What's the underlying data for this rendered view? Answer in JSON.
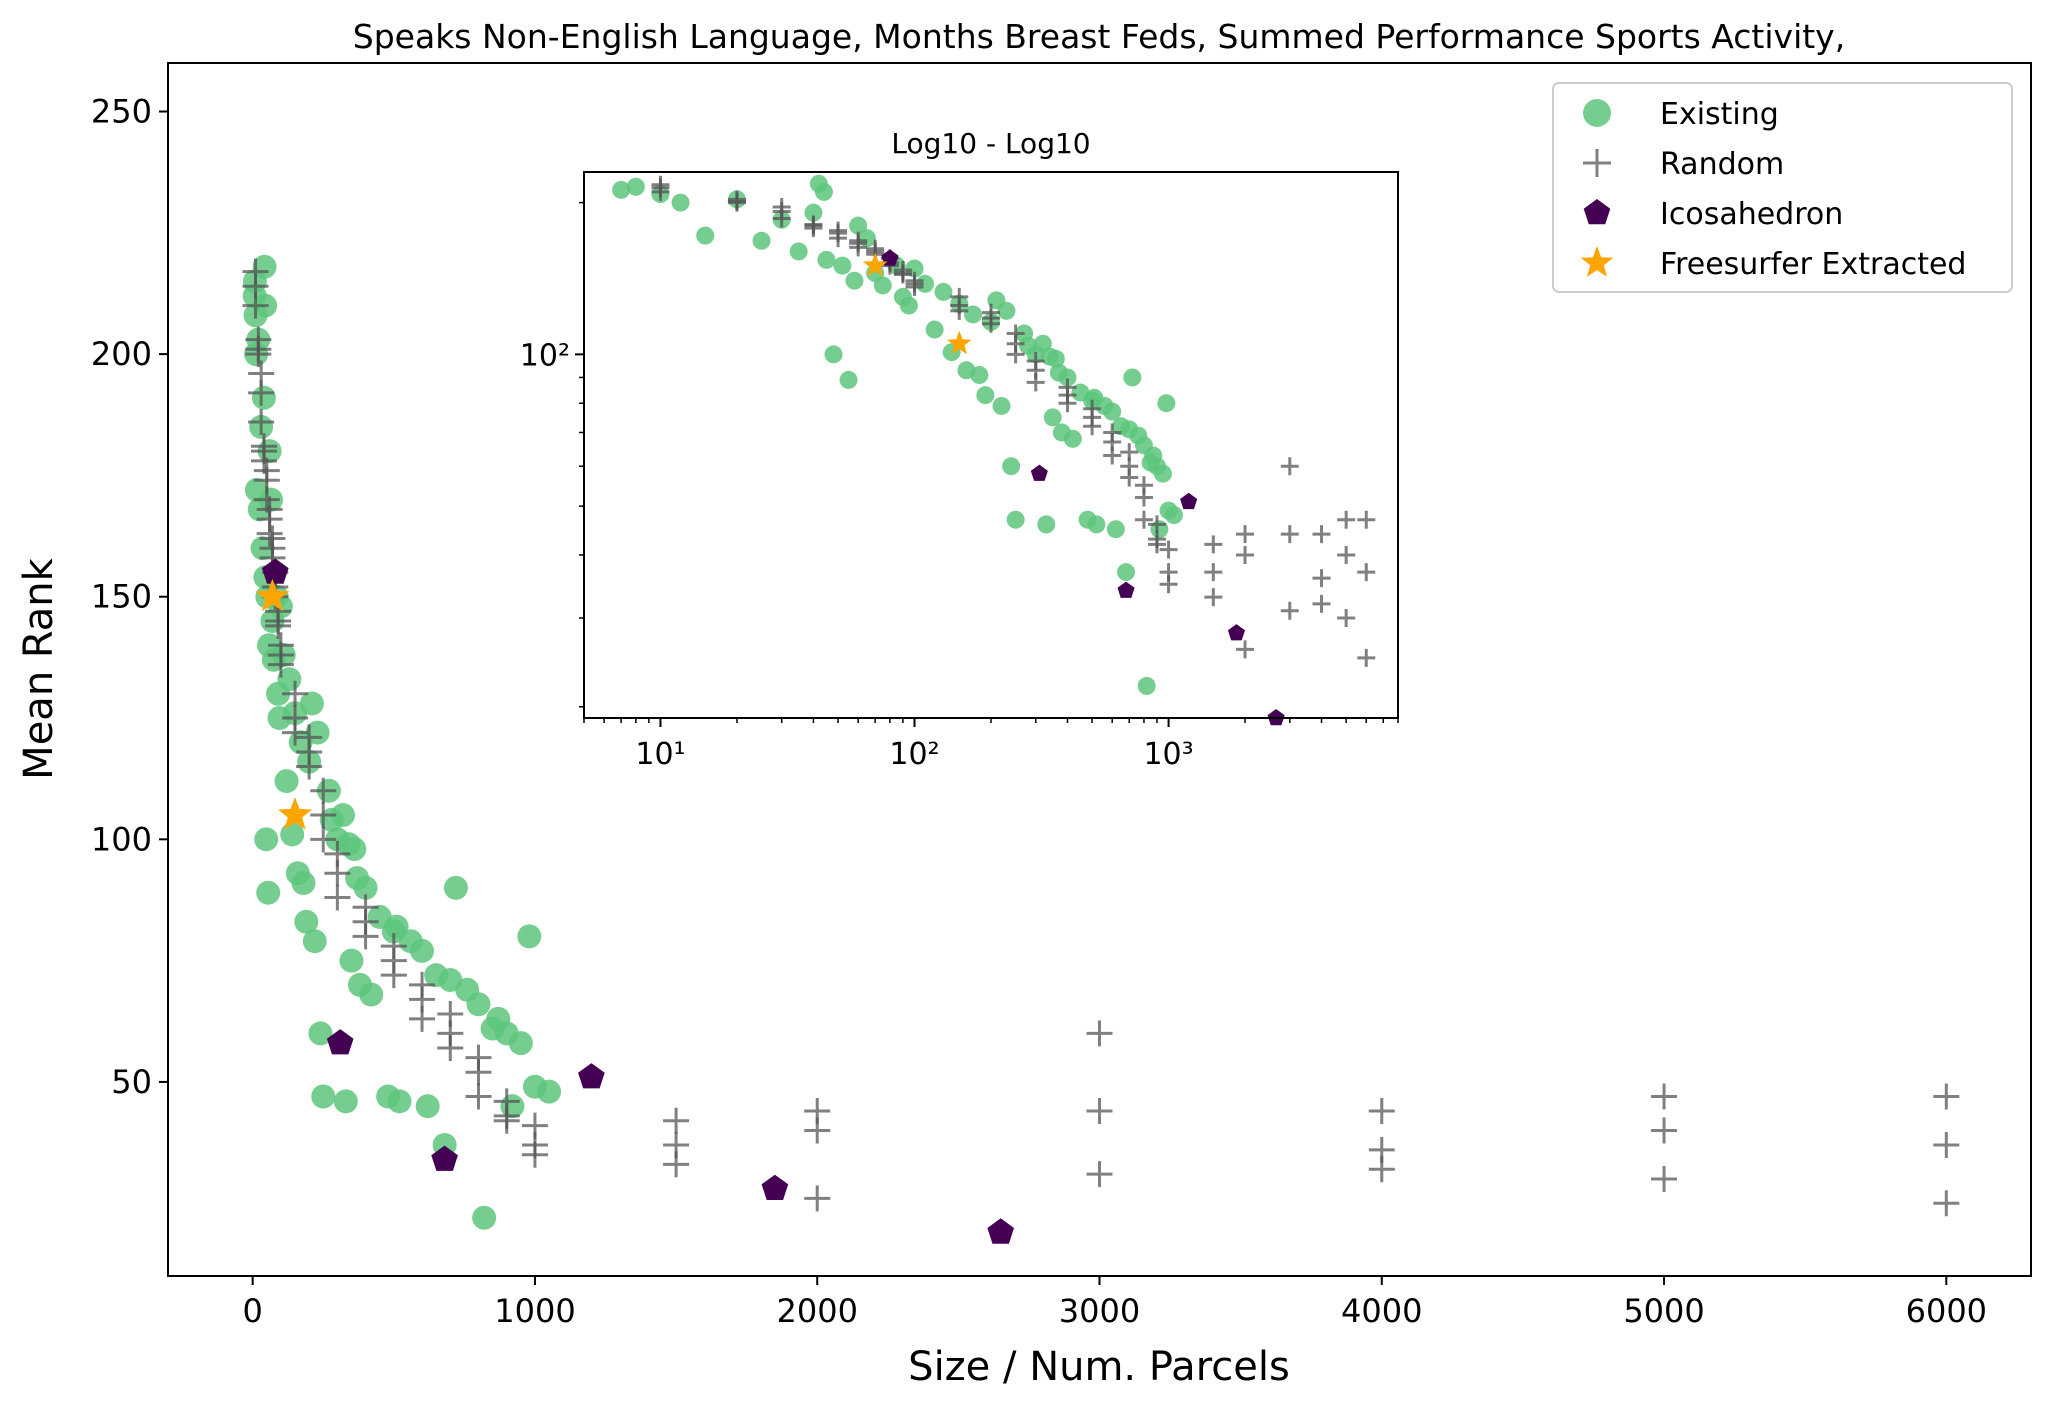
{
  "chart_data": [
    {
      "type": "scatter",
      "title": "Speaks Non-English Language, Months Breast Feds, Summed Performance Sports Activity,",
      "xlabel": "Size / Num. Parcels",
      "ylabel": "Mean Rank",
      "xlim": [
        -300,
        6300
      ],
      "ylim": [
        10,
        260
      ],
      "xticks": [
        0,
        1000,
        2000,
        3000,
        4000,
        5000,
        6000
      ],
      "yticks": [
        50,
        100,
        150,
        200,
        250
      ],
      "grid": false,
      "legend_position": "top-right",
      "legend": [
        "Existing",
        "Random",
        "Icosahedron",
        "Freesurfer Extracted"
      ],
      "colors": {
        "existing": "#5dc57d",
        "random": "#555555",
        "icosahedron": "#440154",
        "freesurfer": "#ffa500"
      },
      "series": [
        {
          "name": "Existing",
          "marker": "circle",
          "x": [
            7,
            8,
            10,
            12,
            20,
            30,
            40,
            42,
            44,
            48,
            55,
            60,
            65,
            70,
            85,
            100,
            110,
            130,
            150,
            170,
            200,
            210,
            230,
            270,
            280,
            300,
            320,
            340,
            360,
            370,
            400,
            450,
            500,
            510,
            560,
            600,
            650,
            700,
            760,
            800,
            850,
            900,
            950,
            1000,
            1050,
            15,
            25,
            35,
            45,
            52,
            58,
            75,
            90,
            95,
            120,
            140,
            160,
            180,
            190,
            220,
            240,
            250,
            330,
            350,
            380,
            420,
            480,
            520,
            620,
            680,
            720,
            820,
            870,
            920,
            980
          ],
          "y": [
            212,
            215,
            208,
            200,
            203,
            185,
            191,
            218,
            210,
            100,
            89,
            180,
            170,
            145,
            150,
            148,
            138,
            133,
            126,
            120,
            116,
            128,
            122,
            110,
            104,
            100,
            105,
            99,
            98,
            92,
            90,
            84,
            81,
            82,
            79,
            77,
            72,
            71,
            69,
            66,
            61,
            60,
            58,
            49,
            48,
            172,
            168,
            160,
            154,
            150,
            140,
            137,
            130,
            125,
            112,
            101,
            93,
            91,
            83,
            79,
            60,
            47,
            46,
            75,
            70,
            68,
            47,
            46,
            45,
            37,
            90,
            22,
            63,
            45,
            80
          ]
        },
        {
          "name": "Random",
          "marker": "plus",
          "x": [
            10,
            10,
            10,
            20,
            20,
            20,
            30,
            30,
            30,
            40,
            40,
            40,
            50,
            50,
            50,
            60,
            60,
            60,
            70,
            70,
            70,
            80,
            80,
            80,
            90,
            90,
            90,
            100,
            100,
            100,
            150,
            150,
            150,
            200,
            200,
            200,
            250,
            250,
            250,
            300,
            300,
            300,
            400,
            400,
            400,
            500,
            500,
            500,
            600,
            600,
            600,
            700,
            700,
            700,
            800,
            800,
            800,
            900,
            900,
            900,
            1000,
            1000,
            1000,
            1500,
            1500,
            1500,
            2000,
            2000,
            2000,
            3000,
            3000,
            3000,
            4000,
            4000,
            4000,
            5000,
            5000,
            5000,
            6000,
            6000,
            6000
          ],
          "y": [
            217,
            214,
            210,
            203,
            200,
            201,
            196,
            192,
            186,
            180,
            181,
            178,
            176,
            174,
            170,
            168,
            166,
            163,
            160,
            162,
            158,
            155,
            152,
            150,
            147,
            145,
            144,
            140,
            138,
            136,
            130,
            125,
            122,
            121,
            118,
            115,
            110,
            105,
            100,
            97,
            93,
            88,
            86,
            83,
            80,
            78,
            75,
            72,
            70,
            67,
            63,
            64,
            60,
            57,
            55,
            52,
            47,
            46,
            43,
            42,
            41,
            37,
            35,
            42,
            37,
            33,
            44,
            40,
            26,
            60,
            44,
            31,
            44,
            36,
            32,
            47,
            40,
            30,
            47,
            37,
            25
          ]
        },
        {
          "name": "Icosahedron",
          "marker": "pentagon",
          "x": [
            80,
            310,
            680,
            1200,
            1850,
            2650
          ],
          "y": [
            155,
            58,
            34,
            51,
            28,
            19
          ]
        },
        {
          "name": "Freesurfer Extracted",
          "marker": "star",
          "x": [
            70,
            150
          ],
          "y": [
            150,
            105
          ]
        }
      ]
    },
    {
      "type": "scatter",
      "title": "Log10 - Log10",
      "xscale": "log",
      "yscale": "log",
      "xlim": [
        5,
        8000
      ],
      "ylim": [
        19,
        230
      ],
      "xticks": [
        10,
        100,
        1000
      ],
      "xtick_labels": [
        "10¹",
        "10²",
        "10³"
      ],
      "yticks": [
        100
      ],
      "ytick_labels": [
        "10²"
      ],
      "note_series": "same data as main chart"
    }
  ]
}
